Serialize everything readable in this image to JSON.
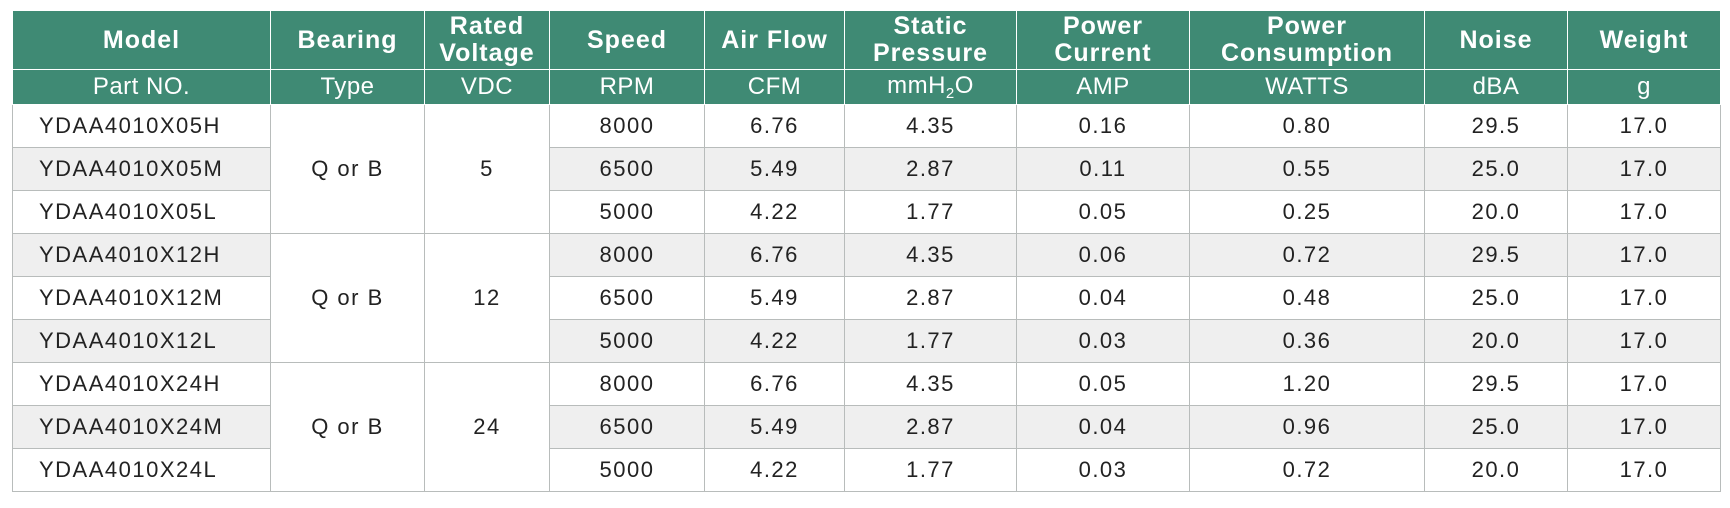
{
  "headers": {
    "model": "Model",
    "bearing": "Bearing",
    "voltage_line1": "Rated",
    "voltage_line2": "Voltage",
    "speed": "Speed",
    "airflow": "Air Flow",
    "pressure_line1": "Static",
    "pressure_line2": "Pressure",
    "current_line1": "Power",
    "current_line2": "Current",
    "consumption_line1": "Power",
    "consumption_line2": "Consumption",
    "noise": "Noise",
    "weight": "Weight"
  },
  "units": {
    "model": "Part NO.",
    "bearing": "Type",
    "voltage": "VDC",
    "speed": "RPM",
    "airflow": "CFM",
    "pressure_prefix": "mmH",
    "pressure_sub": "2",
    "pressure_suffix": "O",
    "current": "AMP",
    "consumption": "WATTS",
    "noise": "dBA",
    "weight": "g"
  },
  "groups": [
    {
      "bearing": "Q or B",
      "voltage": "5",
      "rows": [
        {
          "model": "YDAA4010X05H",
          "speed": "8000",
          "airflow": "6.76",
          "pressure": "4.35",
          "current": "0.16",
          "consumption": "0.80",
          "noise": "29.5",
          "weight": "17.0"
        },
        {
          "model": "YDAA4010X05M",
          "speed": "6500",
          "airflow": "5.49",
          "pressure": "2.87",
          "current": "0.11",
          "consumption": "0.55",
          "noise": "25.0",
          "weight": "17.0"
        },
        {
          "model": "YDAA4010X05L",
          "speed": "5000",
          "airflow": "4.22",
          "pressure": "1.77",
          "current": "0.05",
          "consumption": "0.25",
          "noise": "20.0",
          "weight": "17.0"
        }
      ]
    },
    {
      "bearing": "Q or B",
      "voltage": "12",
      "rows": [
        {
          "model": "YDAA4010X12H",
          "speed": "8000",
          "airflow": "6.76",
          "pressure": "4.35",
          "current": "0.06",
          "consumption": "0.72",
          "noise": "29.5",
          "weight": "17.0"
        },
        {
          "model": "YDAA4010X12M",
          "speed": "6500",
          "airflow": "5.49",
          "pressure": "2.87",
          "current": "0.04",
          "consumption": "0.48",
          "noise": "25.0",
          "weight": "17.0"
        },
        {
          "model": "YDAA4010X12L",
          "speed": "5000",
          "airflow": "4.22",
          "pressure": "1.77",
          "current": "0.03",
          "consumption": "0.36",
          "noise": "20.0",
          "weight": "17.0"
        }
      ]
    },
    {
      "bearing": "Q or B",
      "voltage": "24",
      "rows": [
        {
          "model": "YDAA4010X24H",
          "speed": "8000",
          "airflow": "6.76",
          "pressure": "4.35",
          "current": "0.05",
          "consumption": "1.20",
          "noise": "29.5",
          "weight": "17.0"
        },
        {
          "model": "YDAA4010X24M",
          "speed": "6500",
          "airflow": "5.49",
          "pressure": "2.87",
          "current": "0.04",
          "consumption": "0.96",
          "noise": "25.0",
          "weight": "17.0"
        },
        {
          "model": "YDAA4010X24L",
          "speed": "5000",
          "airflow": "4.22",
          "pressure": "1.77",
          "current": "0.03",
          "consumption": "0.72",
          "noise": "20.0",
          "weight": "17.0"
        }
      ]
    }
  ],
  "colors": {
    "header_bg": "#3f8a74",
    "header_text": "#ffffff",
    "stripe": "#efefef",
    "border": "#b8bcbb"
  }
}
